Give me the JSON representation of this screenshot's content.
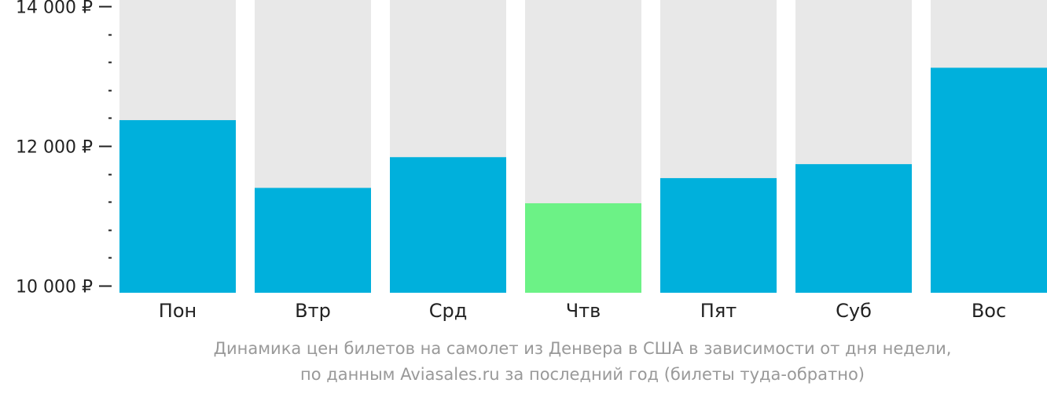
{
  "chart_data": {
    "type": "bar",
    "title": "",
    "xlabel": "",
    "ylabel": "",
    "categories": [
      "Пон",
      "Втр",
      "Срд",
      "Чтв",
      "Пят",
      "Суб",
      "Вос"
    ],
    "values": [
      12370,
      11400,
      11840,
      11180,
      11540,
      11740,
      13120
    ],
    "ylim": [
      10000,
      14000
    ],
    "y_ticks": [
      {
        "value": 10000,
        "label": "10 000 ₽"
      },
      {
        "value": 12000,
        "label": "12 000 ₽"
      },
      {
        "value": 14000,
        "label": "14 000 ₽"
      }
    ],
    "minor_tick_step": 400,
    "highlight_index": 3,
    "colors": {
      "bar": "#00b0dc",
      "highlight": "#6cf286",
      "background_bar": "#e8e8e8",
      "axis": "#222222"
    }
  },
  "caption": {
    "line1": "Динамика цен билетов на самолет из Денвера в США в зависимости от дня недели,",
    "line2": "по данным Aviasales.ru за последний год (билеты туда-обратно)"
  }
}
